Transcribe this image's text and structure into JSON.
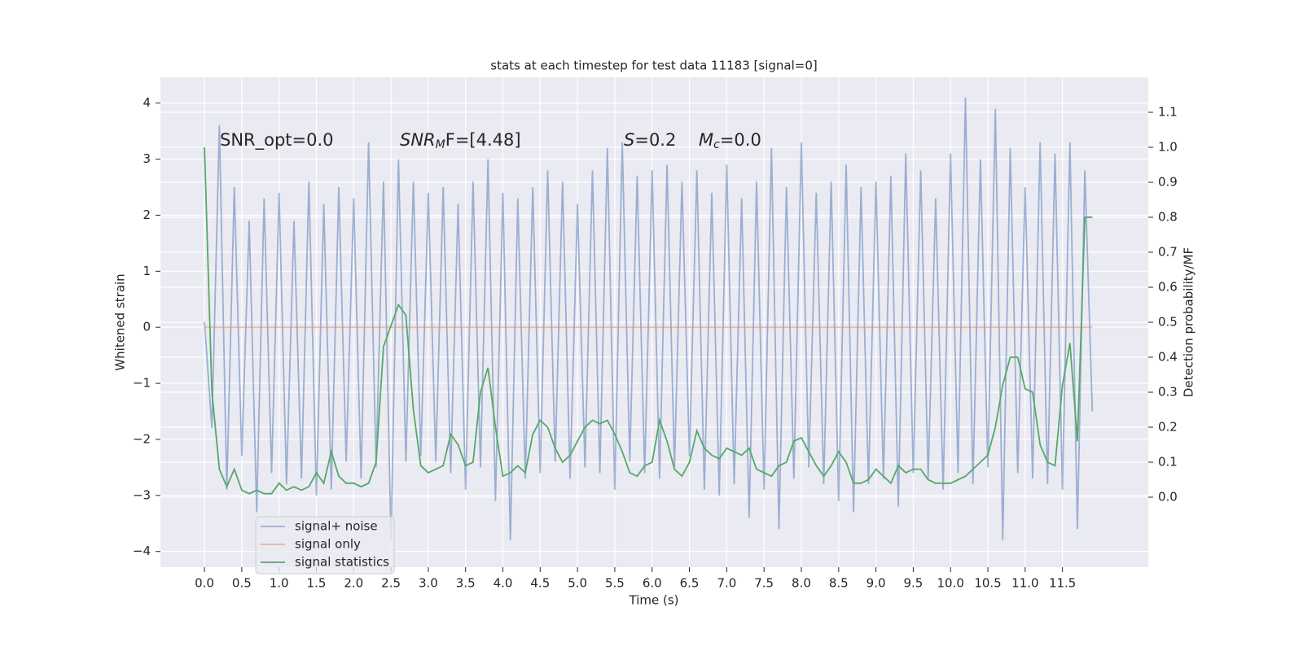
{
  "chart_data": {
    "type": "line",
    "title": "stats at each timestep for test data 11183 [signal=0]",
    "x_label": "Time (s)",
    "y_label": "Whitened strain",
    "y2_label": "Detection probability/MF",
    "annotations": [
      {
        "text": "SNR_opt=0.0"
      },
      {
        "text": "SNR",
        "sub": "M",
        "after": "F=[4.48]"
      },
      {
        "text": "S",
        "after": "=0.2"
      },
      {
        "text": "M",
        "sub": "c",
        "after": "=0.0"
      }
    ],
    "grid": true,
    "legend": "lower left",
    "x": [
      0,
      0.1,
      0.2,
      0.3,
      0.4,
      0.5,
      0.6,
      0.7,
      0.8,
      0.9,
      1,
      1.1,
      1.2,
      1.3,
      1.4,
      1.5,
      1.6,
      1.7,
      1.8,
      1.9,
      2,
      2.1,
      2.2,
      2.3,
      2.4,
      2.5,
      2.6,
      2.7,
      2.8,
      2.9,
      3,
      3.1,
      3.2,
      3.3,
      3.4,
      3.5,
      3.6,
      3.7,
      3.8,
      3.9,
      4,
      4.1,
      4.2,
      4.3,
      4.4,
      4.5,
      4.6,
      4.7,
      4.8,
      4.9,
      5,
      5.1,
      5.2,
      5.3,
      5.4,
      5.5,
      5.6,
      5.7,
      5.8,
      5.9,
      6,
      6.1,
      6.2,
      6.3,
      6.4,
      6.5,
      6.6,
      6.7,
      6.8,
      6.9,
      7,
      7.1,
      7.2,
      7.3,
      7.4,
      7.5,
      7.6,
      7.7,
      7.8,
      7.9,
      8,
      8.1,
      8.2,
      8.3,
      8.4,
      8.5,
      8.6,
      8.7,
      8.8,
      8.9,
      9,
      9.1,
      9.2,
      9.3,
      9.4,
      9.5,
      9.6,
      9.7,
      9.8,
      9.9,
      10,
      10.1,
      10.2,
      10.3,
      10.4,
      10.5,
      10.6,
      10.7,
      10.8,
      10.9,
      11,
      11.1,
      11.2,
      11.3,
      11.4,
      11.5,
      11.6,
      11.7,
      11.8,
      11.9
    ],
    "series": [
      {
        "name": "signal+ noise",
        "color": "#4c72b0",
        "opacity": 0.5,
        "values": [
          0.1,
          -1.8,
          3.6,
          -2.9,
          2.5,
          -2.3,
          1.9,
          -3.3,
          2.3,
          -2.6,
          2.4,
          -2.8,
          1.9,
          -2.7,
          2.6,
          -3.0,
          2.2,
          -2.9,
          2.5,
          -2.4,
          2.3,
          -2.7,
          3.3,
          -2.5,
          2.6,
          -3.8,
          3.0,
          -2.4,
          2.6,
          -2.3,
          2.4,
          -2.4,
          2.5,
          -2.6,
          2.2,
          -2.9,
          2.6,
          -2.5,
          3.0,
          -3.1,
          2.4,
          -3.8,
          2.3,
          -2.7,
          2.5,
          -2.6,
          2.8,
          -2.4,
          2.6,
          -2.7,
          2.2,
          -2.5,
          2.8,
          -2.6,
          3.2,
          -2.9,
          3.3,
          -2.4,
          2.7,
          -2.6,
          2.8,
          -2.7,
          2.9,
          -2.5,
          2.6,
          -2.3,
          2.8,
          -2.9,
          2.4,
          -3.0,
          2.9,
          -2.8,
          2.3,
          -3.4,
          2.6,
          -2.9,
          3.2,
          -3.6,
          2.5,
          -2.7,
          3.3,
          -2.5,
          2.4,
          -2.8,
          2.6,
          -3.1,
          2.9,
          -3.3,
          2.5,
          -2.8,
          2.6,
          -2.7,
          2.7,
          -3.2,
          3.1,
          -2.6,
          2.8,
          -2.7,
          2.3,
          -2.9,
          3.1,
          -2.6,
          4.1,
          -2.8,
          3.0,
          -2.5,
          3.9,
          -3.8,
          3.2,
          -2.6,
          2.5,
          -2.7,
          3.3,
          -2.8,
          3.1,
          -2.9,
          3.3,
          -3.6,
          2.8,
          -1.5
        ]
      },
      {
        "name": "signal only",
        "color": "#dd8452",
        "opacity": 0.5,
        "values": [
          0,
          0,
          0,
          0,
          0,
          0,
          0,
          0,
          0,
          0,
          0,
          0,
          0,
          0,
          0,
          0,
          0,
          0,
          0,
          0,
          0,
          0,
          0,
          0,
          0,
          0,
          0,
          0,
          0,
          0,
          0,
          0,
          0,
          0,
          0,
          0,
          0,
          0,
          0,
          0,
          0,
          0,
          0,
          0,
          0,
          0,
          0,
          0,
          0,
          0,
          0,
          0,
          0,
          0,
          0,
          0,
          0,
          0,
          0,
          0,
          0,
          0,
          0,
          0,
          0,
          0,
          0,
          0,
          0,
          0,
          0,
          0,
          0,
          0,
          0,
          0,
          0,
          0,
          0,
          0,
          0,
          0,
          0,
          0,
          0,
          0,
          0,
          0,
          0,
          0,
          0,
          0,
          0,
          0,
          0,
          0,
          0,
          0,
          0,
          0,
          0,
          0,
          0,
          0,
          0,
          0,
          0,
          0,
          0,
          0,
          0,
          0,
          0,
          0,
          0,
          0,
          0,
          0,
          0,
          0
        ]
      },
      {
        "name": "signal statistics",
        "color": "#55a868",
        "opacity": 1,
        "axis": "y2",
        "values": [
          1.0,
          0.3,
          0.08,
          0.03,
          0.08,
          0.02,
          0.01,
          0.02,
          0.01,
          0.01,
          0.04,
          0.02,
          0.03,
          0.02,
          0.03,
          0.07,
          0.04,
          0.13,
          0.06,
          0.04,
          0.04,
          0.03,
          0.04,
          0.1,
          0.43,
          0.49,
          0.55,
          0.52,
          0.25,
          0.09,
          0.07,
          0.08,
          0.09,
          0.18,
          0.15,
          0.09,
          0.1,
          0.3,
          0.37,
          0.2,
          0.06,
          0.07,
          0.09,
          0.07,
          0.18,
          0.22,
          0.2,
          0.14,
          0.1,
          0.12,
          0.16,
          0.2,
          0.22,
          0.21,
          0.22,
          0.18,
          0.13,
          0.07,
          0.06,
          0.09,
          0.1,
          0.22,
          0.16,
          0.08,
          0.06,
          0.1,
          0.19,
          0.14,
          0.12,
          0.11,
          0.14,
          0.13,
          0.12,
          0.14,
          0.08,
          0.07,
          0.06,
          0.09,
          0.1,
          0.16,
          0.17,
          0.13,
          0.09,
          0.06,
          0.09,
          0.13,
          0.1,
          0.04,
          0.04,
          0.05,
          0.08,
          0.06,
          0.04,
          0.09,
          0.07,
          0.08,
          0.08,
          0.05,
          0.04,
          0.04,
          0.04,
          0.05,
          0.06,
          0.08,
          0.1,
          0.12,
          0.2,
          0.32,
          0.4,
          0.4,
          0.31,
          0.3,
          0.15,
          0.1,
          0.09,
          0.32,
          0.44,
          0.16,
          0.8,
          0.8
        ]
      }
    ],
    "xlim": [
      -0.59,
      12.65
    ],
    "ylim": [
      -4.28,
      4.46
    ],
    "y2lim": [
      -0.2,
      1.2
    ],
    "xticks": [
      {
        "value": 0,
        "label": "0.0"
      },
      {
        "value": 0.5,
        "label": "0.5"
      },
      {
        "value": 1,
        "label": "1.0"
      },
      {
        "value": 1.5,
        "label": "1.5"
      },
      {
        "value": 2,
        "label": "2.0"
      },
      {
        "value": 2.5,
        "label": "2.5"
      },
      {
        "value": 3,
        "label": "3.0"
      },
      {
        "value": 3.5,
        "label": "3.5"
      },
      {
        "value": 4,
        "label": "4.0"
      },
      {
        "value": 4.5,
        "label": "4.5"
      },
      {
        "value": 5,
        "label": "5.0"
      },
      {
        "value": 5.5,
        "label": "5.5"
      },
      {
        "value": 6,
        "label": "6.0"
      },
      {
        "value": 6.5,
        "label": "6.5"
      },
      {
        "value": 7,
        "label": "7.0"
      },
      {
        "value": 7.5,
        "label": "7.5"
      },
      {
        "value": 8,
        "label": "8.0"
      },
      {
        "value": 8.5,
        "label": "8.5"
      },
      {
        "value": 9,
        "label": "9.0"
      },
      {
        "value": 9.5,
        "label": "9.5"
      },
      {
        "value": 10,
        "label": "10.0"
      },
      {
        "value": 10.5,
        "label": "10.5"
      },
      {
        "value": 11,
        "label": "11.0"
      },
      {
        "value": 11.5,
        "label": "11.5"
      }
    ],
    "yticks": [
      {
        "value": -4,
        "label": "−4"
      },
      {
        "value": -3,
        "label": "−3"
      },
      {
        "value": -2,
        "label": "−2"
      },
      {
        "value": -1,
        "label": "−1"
      },
      0,
      1,
      2,
      3,
      4
    ],
    "y2ticks": [
      {
        "value": 0,
        "label": "0.0"
      },
      {
        "value": 0.1,
        "label": "0.1"
      },
      {
        "value": 0.2,
        "label": "0.2"
      },
      {
        "value": 0.3,
        "label": "0.3"
      },
      {
        "value": 0.4,
        "label": "0.4"
      },
      {
        "value": 0.5,
        "label": "0.5"
      },
      {
        "value": 0.6,
        "label": "0.6"
      },
      {
        "value": 0.7,
        "label": "0.7"
      },
      {
        "value": 0.8,
        "label": "0.8"
      },
      {
        "value": 0.9,
        "label": "0.9"
      },
      {
        "value": 1,
        "label": "1.0"
      },
      {
        "value": 1.1,
        "label": "1.1"
      }
    ]
  }
}
